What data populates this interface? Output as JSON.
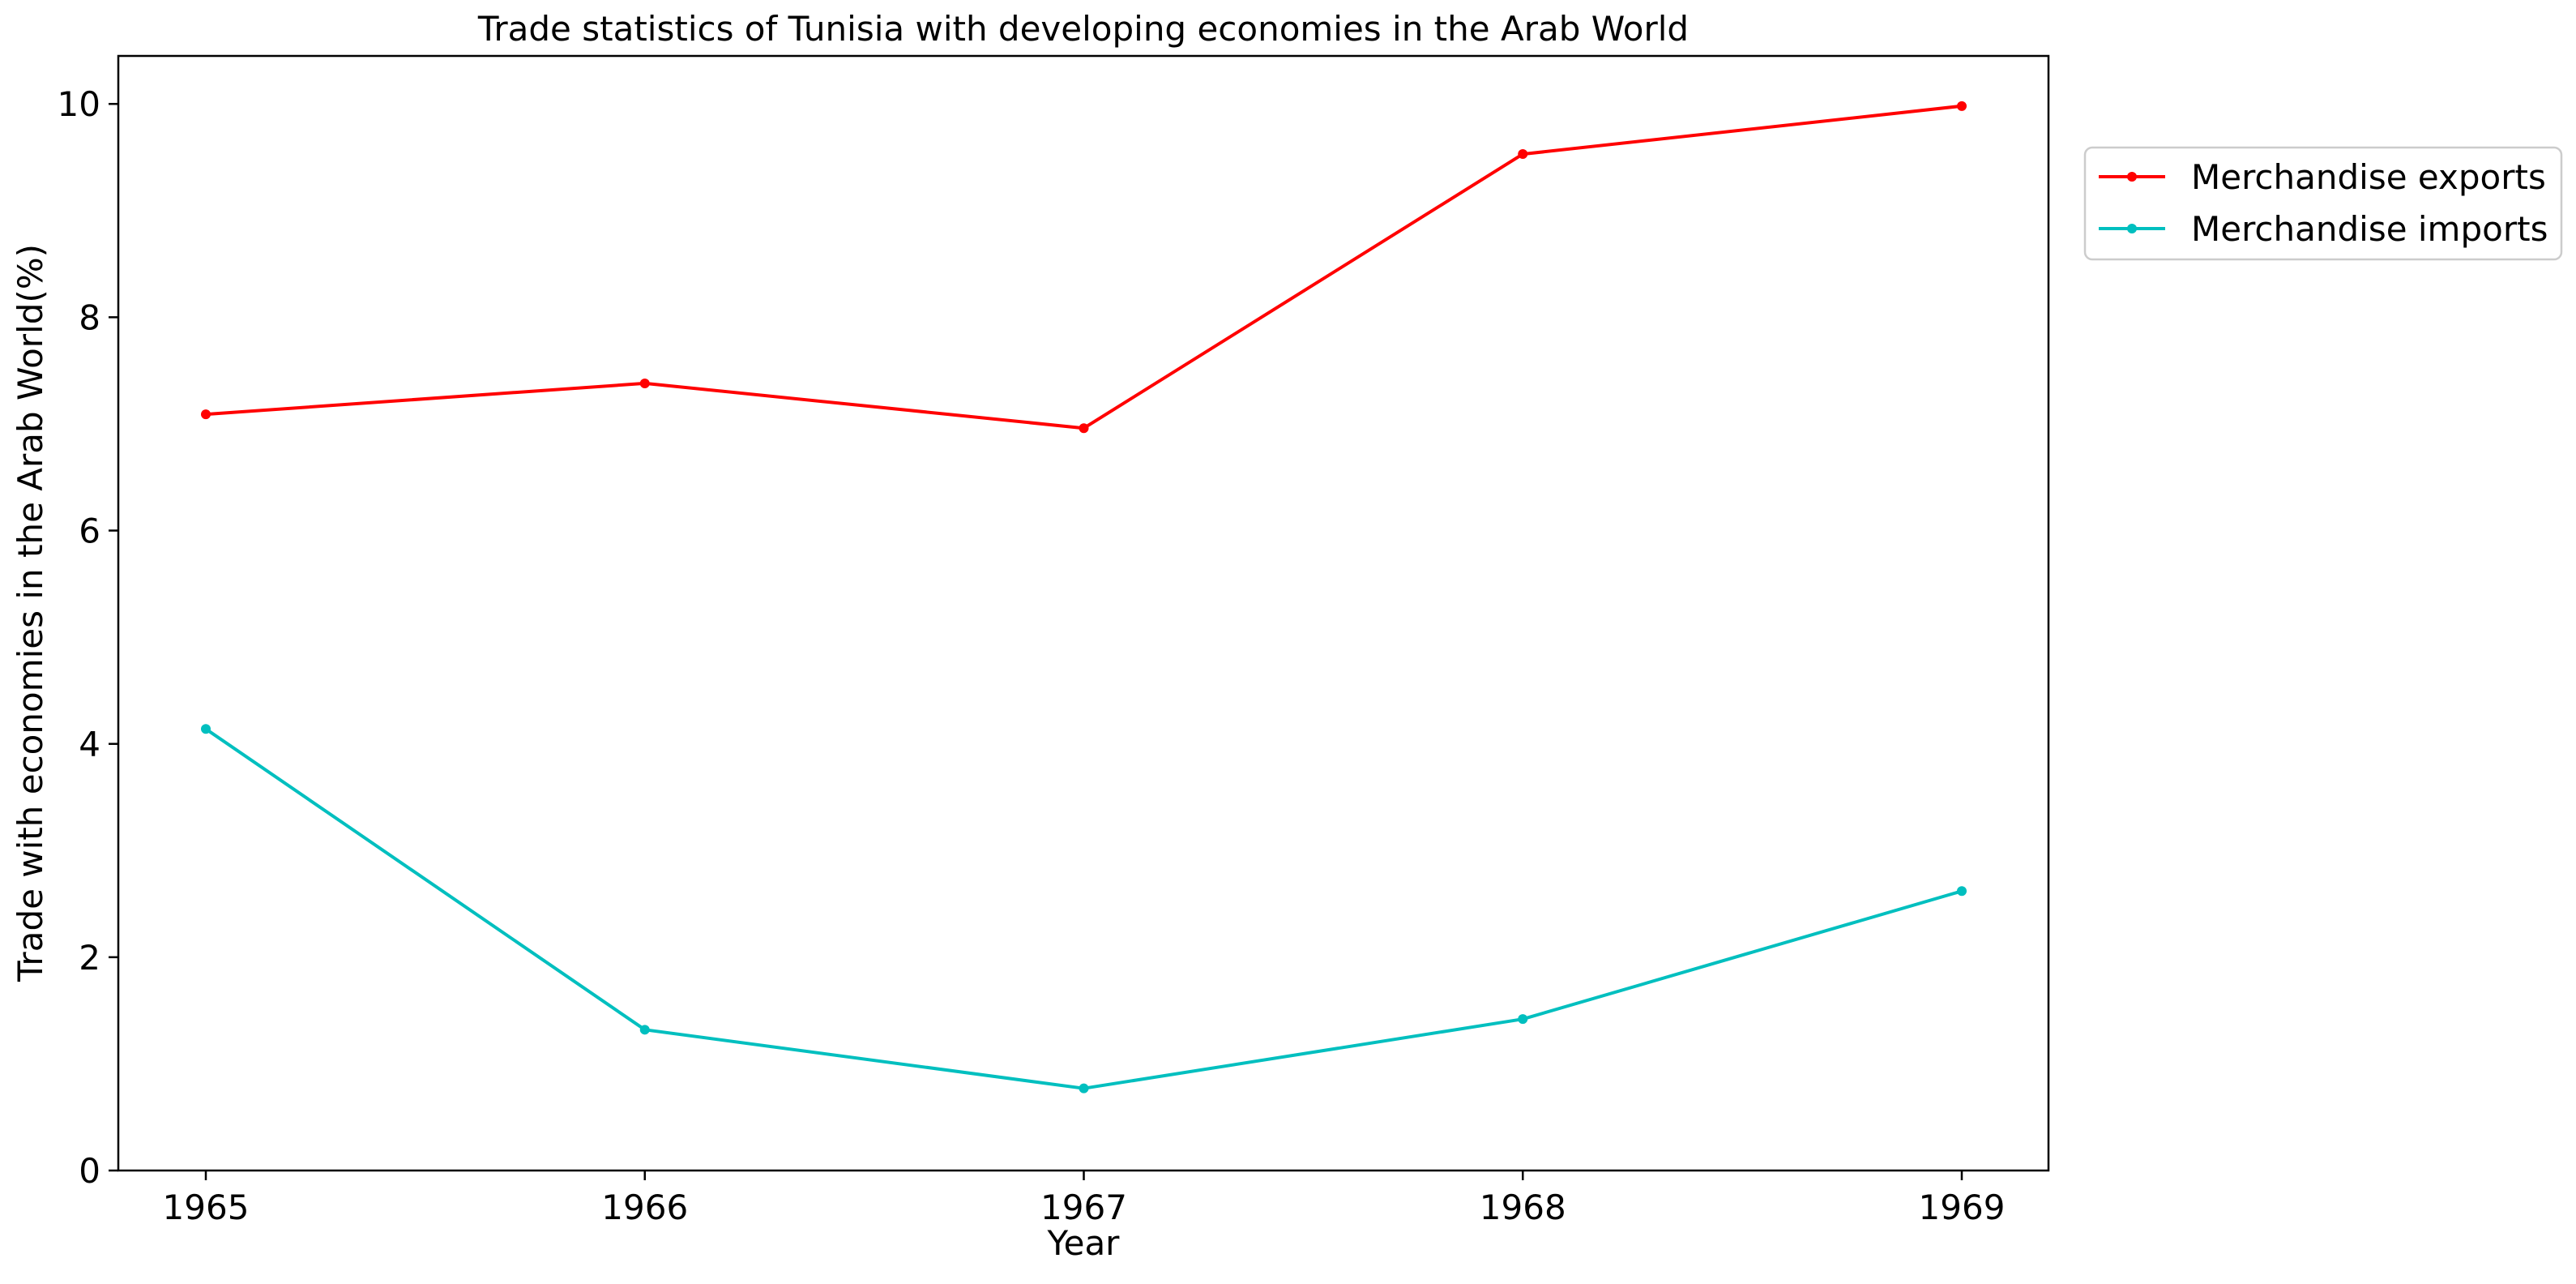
{
  "chart_data": {
    "type": "line",
    "title": "Trade statistics of Tunisia with developing economies in the Arab World",
    "xlabel": "Year",
    "ylabel": "Trade with economies in the Arab World(%)",
    "x": [
      "1965",
      "1966",
      "1967",
      "1968",
      "1969"
    ],
    "series": [
      {
        "name": "Merchandise exports",
        "color": "#ff0000",
        "values": [
          7.09,
          7.38,
          6.96,
          9.53,
          9.98
        ]
      },
      {
        "name": "Merchandise imports",
        "color": "#00bfbf",
        "values": [
          4.14,
          1.32,
          0.77,
          1.42,
          2.62
        ]
      }
    ],
    "ylim": [
      0,
      10.45
    ],
    "yticks": [
      "0",
      "2",
      "4",
      "6",
      "8",
      "10"
    ],
    "grid": false,
    "legend_position": "outside-top-right"
  }
}
